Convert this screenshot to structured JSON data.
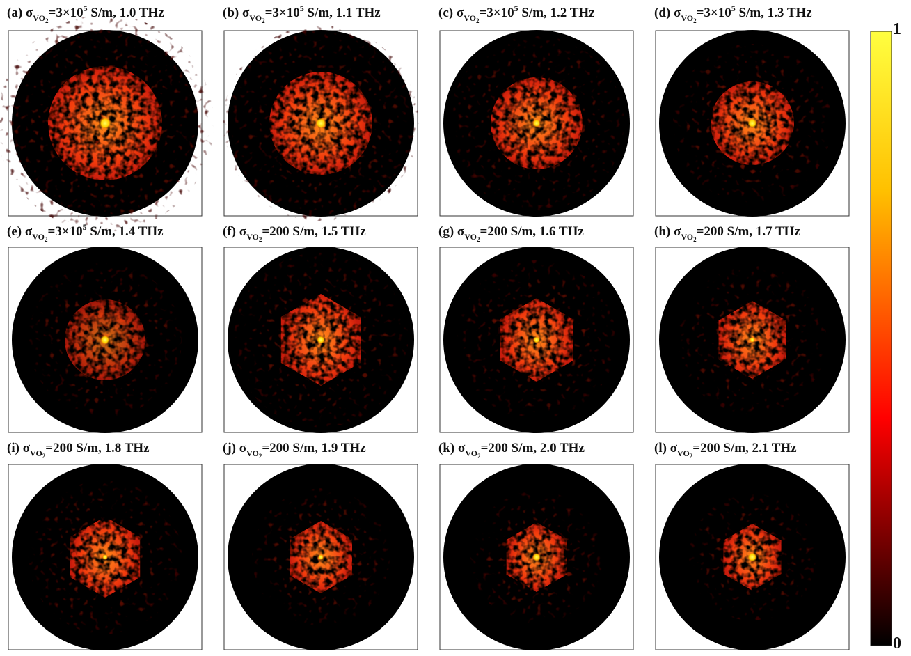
{
  "panels": [
    {
      "tag": "(a)",
      "symbol": "σ",
      "sub": "VO",
      "sub_index": "2",
      "value": "=3×10",
      "exponent": "5",
      "rest": "S/m, 1.0 THz"
    },
    {
      "tag": "(b)",
      "symbol": "σ",
      "sub": "VO",
      "sub_index": "2",
      "value": "=3×10",
      "exponent": "5",
      "rest": "S/m, 1.1 THz"
    },
    {
      "tag": "(c)",
      "symbol": "σ",
      "sub": "VO",
      "sub_index": "2",
      "value": "=3×10",
      "exponent": "5",
      "rest": "S/m, 1.2 THz"
    },
    {
      "tag": "(d)",
      "symbol": "σ",
      "sub": "VO",
      "sub_index": "2",
      "value": "=3×10",
      "exponent": "5",
      "rest": "S/m, 1.3 THz"
    },
    {
      "tag": "(e)",
      "symbol": "σ",
      "sub": "VO",
      "sub_index": "2",
      "value": "=3×10",
      "exponent": "5",
      "rest": "S/m, 1.4 THz"
    },
    {
      "tag": "(f)",
      "symbol": "σ",
      "sub": "VO",
      "sub_index": "2",
      "value": "=200 S/m, 1.5 THz"
    },
    {
      "tag": "(g)",
      "symbol": "σ",
      "sub": "VO",
      "sub_index": "2",
      "value": "=200 S/m, 1.6 THz"
    },
    {
      "tag": "(h)",
      "symbol": "σ",
      "sub": "VO",
      "sub_index": "2",
      "value": "=200 S/m, 1.7 THz"
    },
    {
      "tag": "(i)",
      "symbol": "σ",
      "sub": "VO",
      "sub_index": "2",
      "value": "=200 S/m, 1.8 THz"
    },
    {
      "tag": "(j)",
      "symbol": "σ",
      "sub": "VO",
      "sub_index": "2",
      "value": "=200 S/m, 1.9 THz"
    },
    {
      "tag": "(k)",
      "symbol": "σ",
      "sub": "VO",
      "sub_index": "2",
      "value": "=200 S/m, 2.0 THz"
    },
    {
      "tag": "(l)",
      "symbol": "σ",
      "sub": "VO",
      "sub_index": "2",
      "value": "=200 S/m, 2.1 THz"
    }
  ],
  "colorbar": {
    "ticks": [
      0,
      1
    ]
  }
}
